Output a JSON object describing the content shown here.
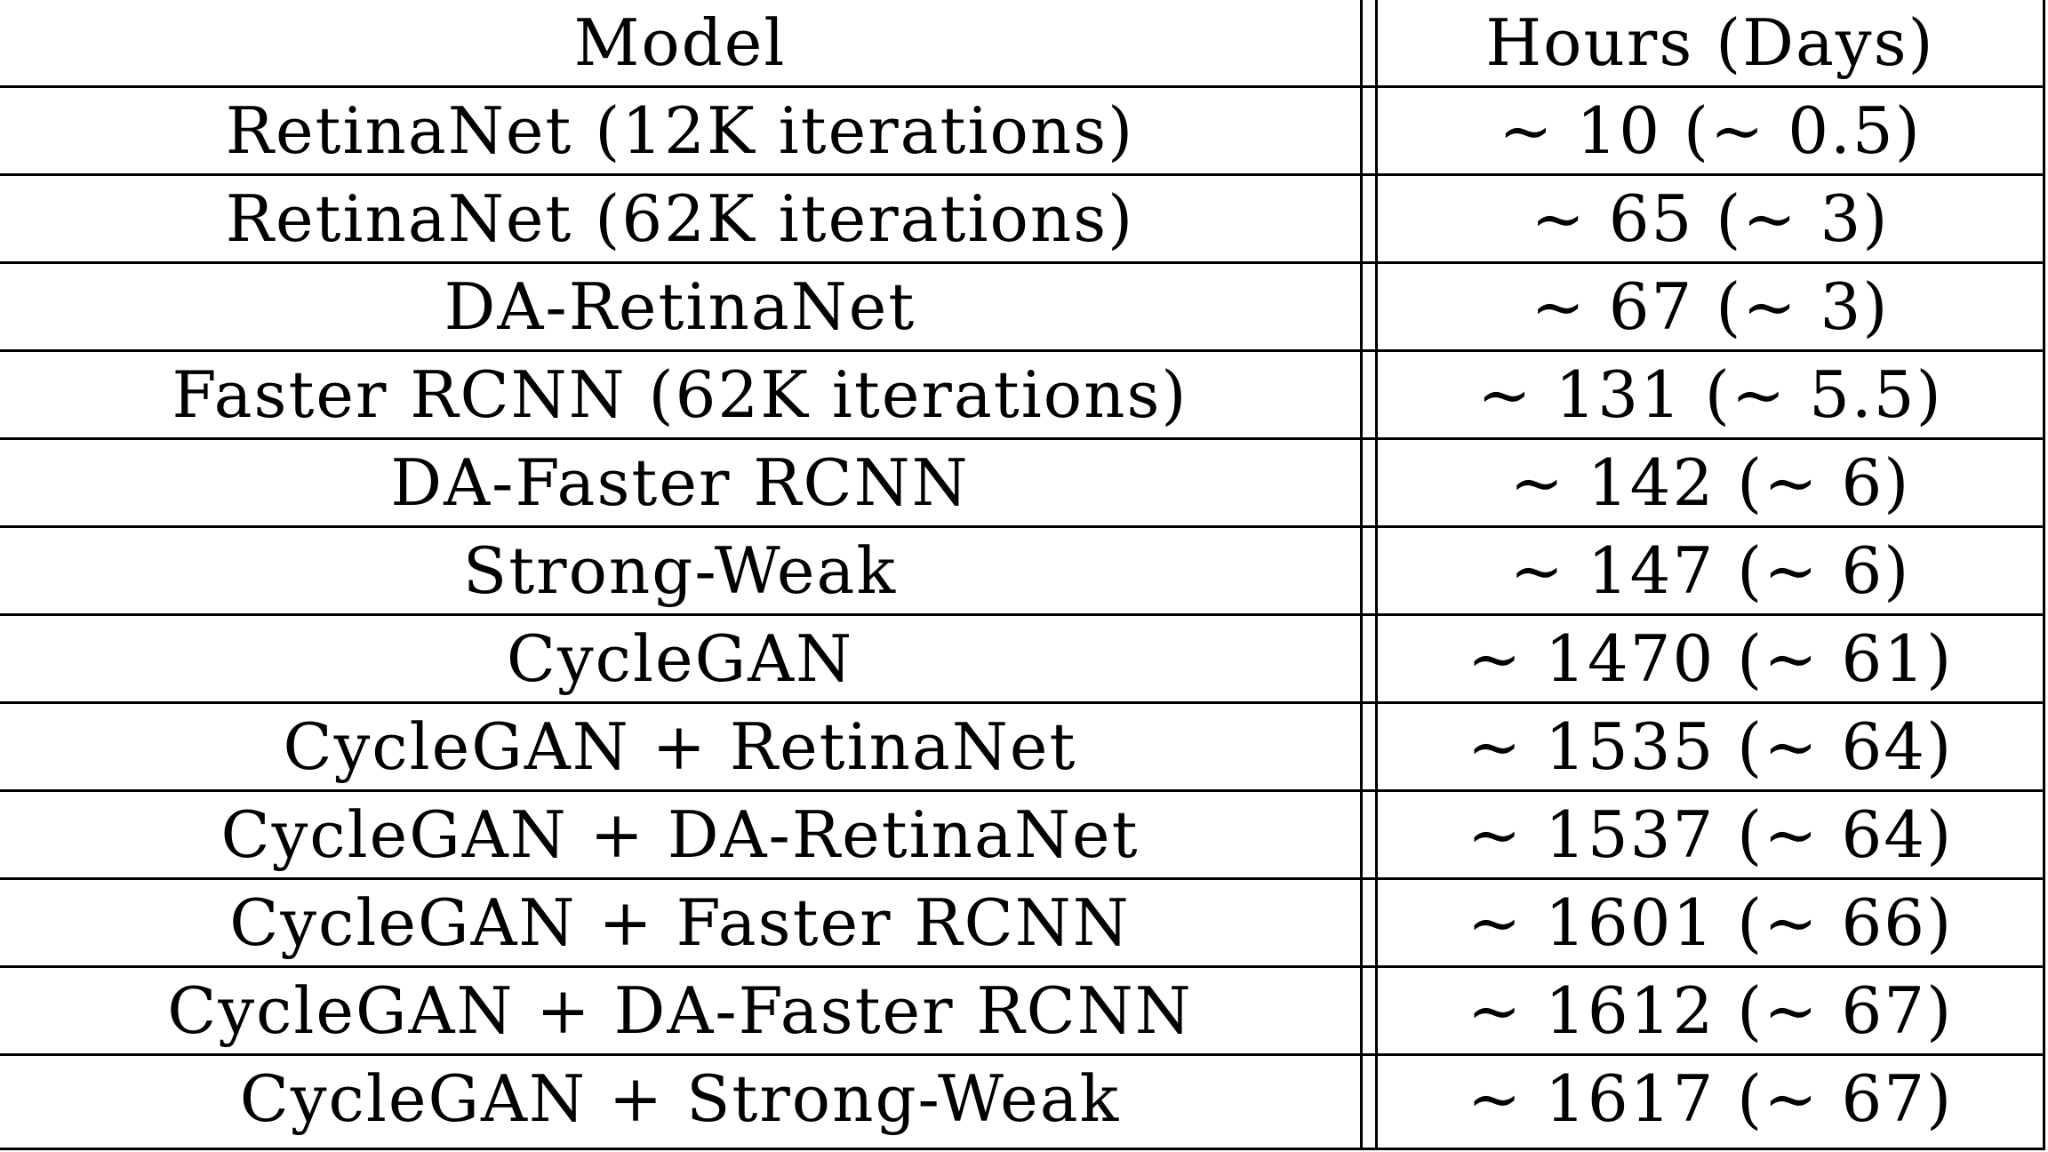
{
  "table": {
    "headers": {
      "model": "Model",
      "hours": "Hours (Days)"
    },
    "rows": [
      {
        "model": "RetinaNet (12K iterations)",
        "hours": "∼ 10 (∼ 0.5)"
      },
      {
        "model": "RetinaNet (62K iterations)",
        "hours": "∼ 65 (∼ 3)"
      },
      {
        "model": "DA-RetinaNet",
        "hours": "∼ 67 (∼ 3)"
      },
      {
        "model": "Faster RCNN (62K iterations)",
        "hours": "∼ 131 (∼ 5.5)"
      },
      {
        "model": "DA-Faster RCNN",
        "hours": "∼ 142 (∼ 6)"
      },
      {
        "model": "Strong-Weak",
        "hours": "∼ 147 (∼ 6)"
      },
      {
        "model": "CycleGAN",
        "hours": "∼ 1470 (∼ 61)"
      },
      {
        "model": "CycleGAN + RetinaNet",
        "hours": "∼ 1535 (∼ 64)"
      },
      {
        "model": "CycleGAN + DA-RetinaNet",
        "hours": "∼ 1537 (∼ 64)"
      },
      {
        "model": "CycleGAN + Faster RCNN",
        "hours": "∼ 1601 (∼ 66)"
      },
      {
        "model": "CycleGAN + DA-Faster RCNN",
        "hours": "∼ 1612 (∼ 67)"
      },
      {
        "model": "CycleGAN + Strong-Weak",
        "hours": "∼ 1617 (∼ 67)"
      }
    ]
  }
}
